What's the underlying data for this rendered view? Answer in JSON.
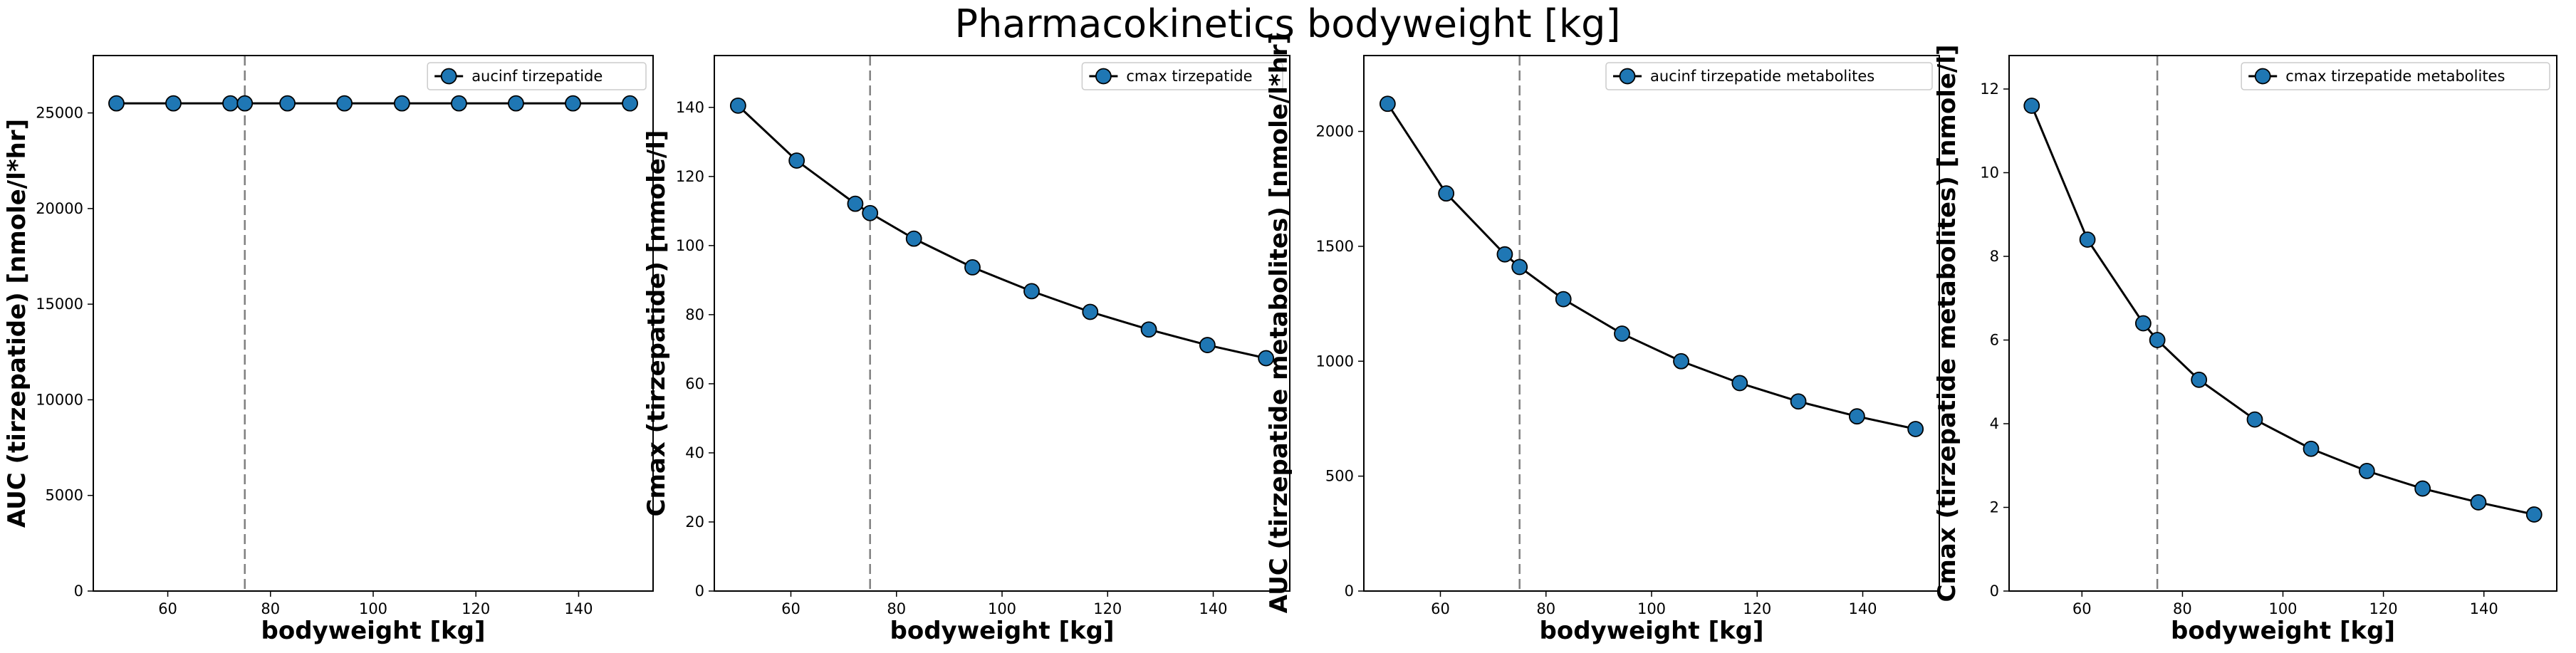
{
  "title": "Pharmacokinetics bodyweight [kg]",
  "reference_x": 75,
  "colors": {
    "marker_fill": "#1f77b4",
    "line": "#000000",
    "reference_line": "#808080",
    "background": "#ffffff"
  },
  "chart_data": [
    {
      "type": "line",
      "xlabel": "bodyweight [kg]",
      "ylabel": "AUC (tirzepatide) [nmole/l*hr]",
      "legend_position": "top-right",
      "xlim": [
        45.5,
        154.5
      ],
      "ylim": [
        0,
        28000
      ],
      "xticks": [
        60,
        80,
        100,
        120,
        140
      ],
      "yticks": [
        0,
        5000,
        10000,
        15000,
        20000,
        25000
      ],
      "series": [
        {
          "name": "aucinf tirzepatide",
          "x": [
            50,
            61.1,
            72.2,
            75,
            83.3,
            94.4,
            105.6,
            116.7,
            127.8,
            138.9,
            150
          ],
          "y": [
            25500,
            25500,
            25500,
            25500,
            25500,
            25500,
            25500,
            25500,
            25500,
            25500,
            25500
          ]
        }
      ]
    },
    {
      "type": "line",
      "xlabel": "bodyweight [kg]",
      "ylabel": "Cmax (tirzepatide) [nmole/l]",
      "legend_position": "top-right",
      "xlim": [
        45.5,
        154.5
      ],
      "ylim": [
        0,
        155
      ],
      "xticks": [
        60,
        80,
        100,
        120,
        140
      ],
      "yticks": [
        0,
        20,
        40,
        60,
        80,
        100,
        120,
        140
      ],
      "series": [
        {
          "name": "cmax tirzepatide",
          "x": [
            50,
            61.1,
            72.2,
            75,
            83.3,
            94.4,
            105.6,
            116.7,
            127.8,
            138.9,
            150
          ],
          "y": [
            140.5,
            124.6,
            112.1,
            109.4,
            102.0,
            93.7,
            86.8,
            80.8,
            75.7,
            71.2,
            67.4
          ]
        }
      ]
    },
    {
      "type": "line",
      "xlabel": "bodyweight [kg]",
      "ylabel": "AUC (tirzepatide metabolites) [nmole/l*hr]",
      "legend_position": "top-right",
      "xlim": [
        45.5,
        154.5
      ],
      "ylim": [
        0,
        2330
      ],
      "xticks": [
        60,
        80,
        100,
        120,
        140
      ],
      "yticks": [
        0,
        500,
        1000,
        1500,
        2000
      ],
      "series": [
        {
          "name": "aucinf tirzepatide metabolites",
          "x": [
            50,
            61.1,
            72.2,
            75,
            83.3,
            94.4,
            105.6,
            116.7,
            127.8,
            138.9,
            150
          ],
          "y": [
            2120,
            1730,
            1465,
            1410,
            1270,
            1120,
            1000,
            905,
            825,
            760,
            705
          ]
        }
      ]
    },
    {
      "type": "line",
      "xlabel": "bodyweight [kg]",
      "ylabel": "Cmax (tirzepatide metabolites) [nmole/l]",
      "legend_position": "top-right",
      "xlim": [
        45.5,
        154.5
      ],
      "ylim": [
        0,
        12.8
      ],
      "xticks": [
        60,
        80,
        100,
        120,
        140
      ],
      "yticks": [
        0,
        2,
        4,
        6,
        8,
        10,
        12
      ],
      "series": [
        {
          "name": "cmax tirzepatide metabolites",
          "x": [
            50,
            61.1,
            72.2,
            75,
            83.3,
            94.4,
            105.6,
            116.7,
            127.8,
            138.9,
            150
          ],
          "y": [
            11.6,
            8.4,
            6.4,
            6.0,
            5.05,
            4.1,
            3.4,
            2.87,
            2.45,
            2.12,
            1.83
          ]
        }
      ]
    }
  ]
}
